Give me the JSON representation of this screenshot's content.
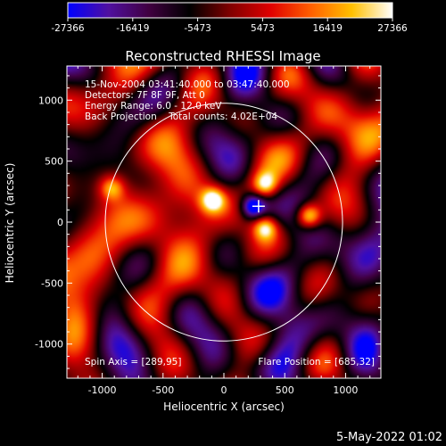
{
  "colorbar": {
    "ticks": [
      "-27366",
      "-16419",
      "-5473",
      "5473",
      "16419",
      "27366"
    ],
    "min": -27366,
    "max": 27366,
    "stops": [
      "#0000ff",
      "#5010a0",
      "#400040",
      "#000000",
      "#800000",
      "#e00000",
      "#ff6000",
      "#ffc000",
      "#ffffff"
    ]
  },
  "chart_data": {
    "type": "heatmap",
    "title": "Reconstructed RHESSI Image",
    "xlabel": "Heliocentric X (arcsec)",
    "ylabel": "Heliocentric Y (arcsec)",
    "xlim": [
      -1290,
      1290
    ],
    "ylim": [
      -1280,
      1280
    ],
    "xticks": [
      -1000,
      -500,
      0,
      500,
      1000
    ],
    "yticks": [
      -1000,
      -500,
      0,
      500,
      1000
    ],
    "xtick_labels": [
      "-1000",
      "-500",
      "0",
      "500",
      "1000"
    ],
    "ytick_labels": [
      "-1000",
      "-500",
      "0",
      "500",
      "1000"
    ],
    "solar_limb_radius": 975,
    "flare_marker": [
      285,
      130
    ],
    "sources": [
      {
        "x": -920,
        "y": 280,
        "intensity": 18000
      },
      {
        "x": -90,
        "y": 180,
        "intensity": 26000
      },
      {
        "x": 340,
        "y": 310,
        "intensity": 22000
      },
      {
        "x": 340,
        "y": -50,
        "intensity": 24000
      },
      {
        "x": 700,
        "y": 50,
        "intensity": 27366
      },
      {
        "x": 240,
        "y": 130,
        "intensity": -27366
      }
    ],
    "info_lines": [
      "15-Nov-2004 03:41:40.000 to 03:47:40.000",
      "Detectors: 7F 8F 9F, Att 0",
      "Energy Range: 6.0 - 12.0 keV",
      "Back Projection    Total counts: 4.02E+04"
    ],
    "spin_axis": "Spin Axis = [289,95]",
    "flare_position": "Flare Position = [685,32]"
  },
  "footer": {
    "date": "5-May-2022 01:02"
  }
}
